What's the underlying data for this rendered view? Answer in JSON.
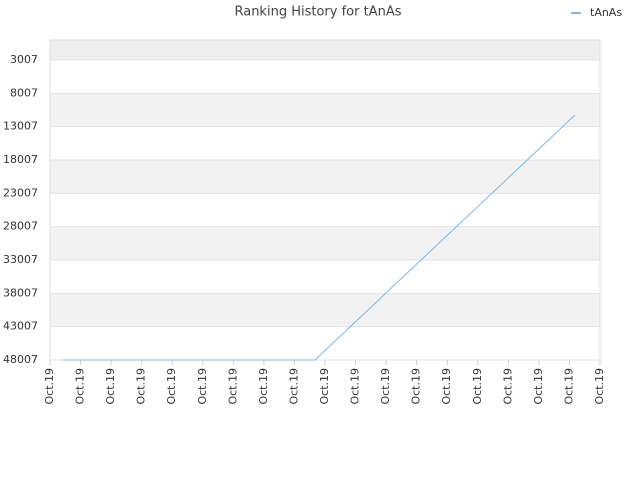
{
  "chart_data": {
    "type": "line",
    "title": "Ranking History for tAnAs",
    "x": [
      0.43,
      2,
      4,
      6,
      8,
      8.67,
      10,
      12,
      14,
      16,
      17.18
    ],
    "series": [
      {
        "name": "tAnAs",
        "color": "#7cb5ec",
        "values": [
          48007,
          48007,
          48007,
          48007,
          48007,
          48007,
          42264,
          33628,
          24992,
          16356,
          11257
        ]
      }
    ],
    "xlim": [
      0,
      18
    ],
    "xticks": [
      {
        "value": 0,
        "label": "Oct.19"
      },
      {
        "value": 1,
        "label": "Oct.19"
      },
      {
        "value": 2,
        "label": "Oct.19"
      },
      {
        "value": 3,
        "label": "Oct.19"
      },
      {
        "value": 4,
        "label": "Oct.19"
      },
      {
        "value": 5,
        "label": "Oct.19"
      },
      {
        "value": 6,
        "label": "Oct.19"
      },
      {
        "value": 7,
        "label": "Oct.19"
      },
      {
        "value": 8,
        "label": "Oct.19"
      },
      {
        "value": 9,
        "label": "Oct.19"
      },
      {
        "value": 10,
        "label": "Oct.19"
      },
      {
        "value": 11,
        "label": "Oct.19"
      },
      {
        "value": 12,
        "label": "Oct.19"
      },
      {
        "value": 13,
        "label": "Oct.19"
      },
      {
        "value": 14,
        "label": "Oct.19"
      },
      {
        "value": 15,
        "label": "Oct.19"
      },
      {
        "value": 16,
        "label": "Oct.19"
      },
      {
        "value": 17,
        "label": "Oct.19"
      },
      {
        "value": 18,
        "label": "Oct.19"
      }
    ],
    "ylim": [
      48007,
      7
    ],
    "yticks": [
      3007,
      8007,
      13007,
      18007,
      23007,
      28007,
      33007,
      38007,
      43007,
      48007
    ],
    "grid": true,
    "legend": "top-right"
  }
}
